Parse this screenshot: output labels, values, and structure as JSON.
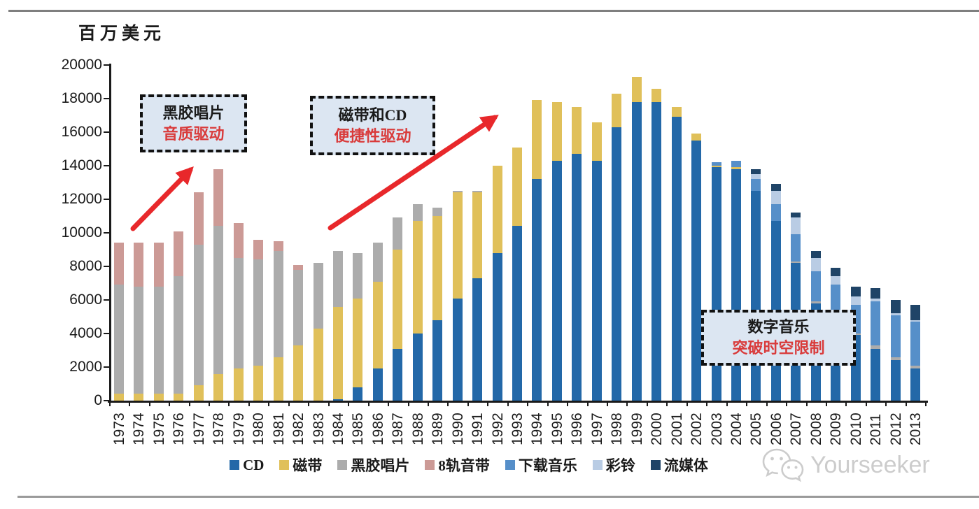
{
  "unit_label": "百万美元",
  "chart_data": {
    "type": "bar",
    "subtype": "stacked",
    "ylabel": "百万美元",
    "ylim": [
      0,
      20000
    ],
    "ytick_step": 2000,
    "yticks": [
      0,
      2000,
      4000,
      6000,
      8000,
      10000,
      12000,
      14000,
      16000,
      18000,
      20000
    ],
    "grid": false,
    "legend_position": "bottom",
    "categories": [
      "1973",
      "1974",
      "1975",
      "1976",
      "1977",
      "1978",
      "1979",
      "1980",
      "1981",
      "1982",
      "1983",
      "1984",
      "1985",
      "1986",
      "1987",
      "1988",
      "1989",
      "1990",
      "1991",
      "1992",
      "1993",
      "1994",
      "1995",
      "1996",
      "1997",
      "1998",
      "1999",
      "2000",
      "2001",
      "2002",
      "2003",
      "2004",
      "2005",
      "2006",
      "2007",
      "2008",
      "2009",
      "2010",
      "2011",
      "2012",
      "2013"
    ],
    "series": [
      {
        "name": "CD",
        "color": "#2368a8",
        "values": [
          0,
          0,
          0,
          0,
          0,
          0,
          0,
          0,
          0,
          0,
          0,
          100,
          800,
          1900,
          3100,
          4000,
          4800,
          6100,
          7300,
          8800,
          10400,
          13200,
          14300,
          14700,
          14300,
          16300,
          17800,
          17800,
          16900,
          15500,
          13900,
          13800,
          12500,
          10700,
          8200,
          5800,
          4800,
          3900,
          3100,
          2400,
          1900
        ]
      },
      {
        "name": "磁带",
        "color": "#e0c05a",
        "values": [
          400,
          400,
          400,
          400,
          900,
          1600,
          1900,
          2100,
          2600,
          3300,
          4300,
          5500,
          5300,
          5200,
          5900,
          6700,
          6200,
          6300,
          5100,
          5200,
          4700,
          4700,
          3500,
          2800,
          2300,
          2000,
          1500,
          800,
          600,
          400,
          100,
          100,
          0,
          0,
          0,
          0,
          0,
          0,
          0,
          0,
          0
        ]
      },
      {
        "name": "黑胶唱片",
        "color": "#acacac",
        "values": [
          6500,
          6400,
          6400,
          7000,
          8400,
          8800,
          6600,
          6300,
          6300,
          4500,
          3900,
          3300,
          2700,
          2300,
          1900,
          1000,
          500,
          100,
          100,
          0,
          0,
          0,
          0,
          0,
          0,
          0,
          0,
          0,
          0,
          0,
          0,
          0,
          0,
          0,
          100,
          100,
          100,
          100,
          200,
          200,
          200
        ]
      },
      {
        "name": "8轨音带",
        "color": "#cc9a96",
        "values": [
          2500,
          2600,
          2600,
          2700,
          3100,
          3400,
          2100,
          1200,
          600,
          300,
          0,
          0,
          0,
          0,
          0,
          0,
          0,
          0,
          0,
          0,
          0,
          0,
          0,
          0,
          0,
          0,
          0,
          0,
          0,
          0,
          0,
          0,
          0,
          0,
          0,
          0,
          0,
          0,
          0,
          0,
          0
        ]
      },
      {
        "name": "下载音乐",
        "color": "#568fc9",
        "values": [
          0,
          0,
          0,
          0,
          0,
          0,
          0,
          0,
          0,
          0,
          0,
          0,
          0,
          0,
          0,
          0,
          0,
          0,
          0,
          0,
          0,
          0,
          0,
          0,
          0,
          0,
          0,
          0,
          0,
          0,
          200,
          400,
          700,
          1000,
          1600,
          1800,
          2000,
          1700,
          2600,
          2500,
          2600
        ]
      },
      {
        "name": "彩铃",
        "color": "#b9cce4",
        "values": [
          0,
          0,
          0,
          0,
          0,
          0,
          0,
          0,
          0,
          0,
          0,
          0,
          0,
          0,
          0,
          0,
          0,
          0,
          0,
          0,
          0,
          0,
          0,
          0,
          0,
          0,
          0,
          0,
          0,
          0,
          0,
          0,
          300,
          800,
          1000,
          800,
          500,
          500,
          200,
          100,
          100
        ]
      },
      {
        "name": "流媒体",
        "color": "#1f4467",
        "values": [
          0,
          0,
          0,
          0,
          0,
          0,
          0,
          0,
          0,
          0,
          0,
          0,
          0,
          0,
          0,
          0,
          0,
          0,
          0,
          0,
          0,
          0,
          0,
          0,
          0,
          0,
          0,
          0,
          0,
          0,
          0,
          0,
          300,
          400,
          300,
          400,
          500,
          600,
          600,
          800,
          900
        ]
      }
    ]
  },
  "annotations": [
    {
      "line1": "黑胶唱片",
      "line2": "音质驱动"
    },
    {
      "line1": "磁带和CD",
      "line2": "便捷性驱动"
    },
    {
      "line1": "数字音乐",
      "line2": "突破时空限制"
    }
  ],
  "arrow_color": "#e8282b",
  "watermark": {
    "text": "Yourseeker",
    "icon": "wechat-icon"
  }
}
